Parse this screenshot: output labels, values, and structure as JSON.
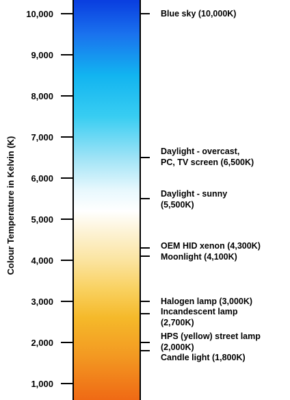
{
  "axis": {
    "title": "Colour Temperature in Kelvin (K)",
    "min": 500,
    "max": 10300
  },
  "ticks": [
    {
      "value": 10000,
      "label": "10,000"
    },
    {
      "value": 9000,
      "label": "9,000"
    },
    {
      "value": 8000,
      "label": "8,000"
    },
    {
      "value": 7000,
      "label": "7,000"
    },
    {
      "value": 6000,
      "label": "6,000"
    },
    {
      "value": 5000,
      "label": "5,000"
    },
    {
      "value": 4000,
      "label": "4,000"
    },
    {
      "value": 3000,
      "label": "3,000"
    },
    {
      "value": 2000,
      "label": "2,000"
    },
    {
      "value": 1000,
      "label": "1,000"
    }
  ],
  "gradient_stops": [
    {
      "value": 10300,
      "color": "#0a3fe0"
    },
    {
      "value": 9500,
      "color": "#1a72ee"
    },
    {
      "value": 8500,
      "color": "#12b4f0"
    },
    {
      "value": 7500,
      "color": "#38cdf2"
    },
    {
      "value": 6500,
      "color": "#9ee3f6"
    },
    {
      "value": 5700,
      "color": "#e8f8fd"
    },
    {
      "value": 5200,
      "color": "#ffffff"
    },
    {
      "value": 4700,
      "color": "#fdf3d6"
    },
    {
      "value": 4000,
      "color": "#fbe4a0"
    },
    {
      "value": 3300,
      "color": "#f9d160"
    },
    {
      "value": 2600,
      "color": "#f5b92a"
    },
    {
      "value": 1700,
      "color": "#f39a22"
    },
    {
      "value": 500,
      "color": "#ef6814"
    }
  ],
  "annotations": [
    {
      "value": 10000,
      "lines": [
        "Blue sky (10,000K)"
      ]
    },
    {
      "value": 6500,
      "lines": [
        "Daylight - overcast,",
        "PC, TV screen (6,500K)"
      ]
    },
    {
      "value": 5500,
      "lines": [
        "Daylight - sunny",
        "(5,500K)"
      ]
    },
    {
      "value": 4300,
      "lines": [
        "OEM HID xenon (4,300K)"
      ]
    },
    {
      "value": 4100,
      "lines": [
        "Moonlight (4,100K)"
      ]
    },
    {
      "value": 3000,
      "lines": [
        "Halogen lamp (3,000K)"
      ]
    },
    {
      "value": 2700,
      "lines": [
        "Incandescent lamp",
        "(2,700K)"
      ]
    },
    {
      "value": 2000,
      "lines": [
        "HPS (yellow) street lamp",
        "(2,000K)"
      ]
    },
    {
      "value": 1800,
      "lines": [
        "Candle light (1,800K)"
      ]
    }
  ],
  "colors": {
    "bar_border": "#000000",
    "text": "#000000"
  }
}
